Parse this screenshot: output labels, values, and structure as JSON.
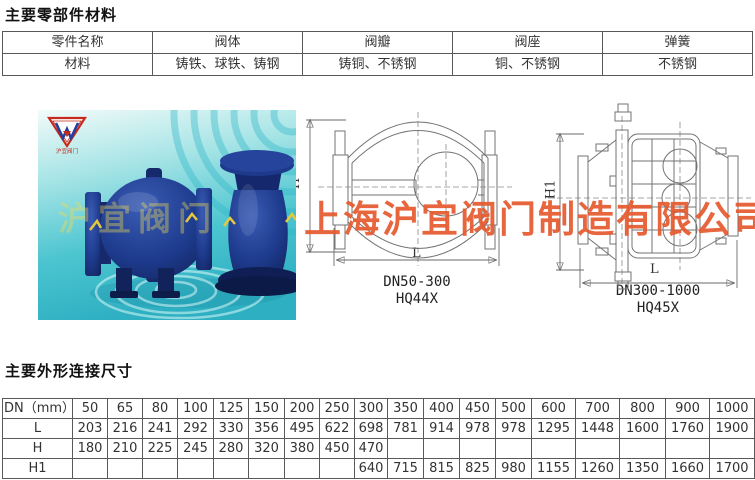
{
  "section1_title": "主要零部件材料",
  "materials_table": {
    "headers": [
      "零件名称",
      "阀体",
      "阀瓣",
      "阀座",
      "弹簧"
    ],
    "rows": [
      [
        "材料",
        "铸铁、球铁、铸钢",
        "铸铜、不锈钢",
        "铜、不锈钢",
        "不锈钢"
      ]
    ]
  },
  "photo": {
    "logo_letter": "W",
    "logo_caption": "沪宜阀门",
    "photo_watermark": "沪宜阀门",
    "logo_red": "#c52a1c",
    "logo_blue": "#23409e",
    "water_color": "#35b9c9",
    "valve_color": "#1d3a8c"
  },
  "drawings": {
    "d1": {
      "caption1": "DN50-300",
      "caption2": "HQ44X",
      "dim_height": "H",
      "dim_length": "L"
    },
    "d2": {
      "caption1": "DN300-1000",
      "caption2": "HQ45X",
      "dim_height": "H1",
      "dim_length": "L"
    }
  },
  "watermark": {
    "text": "上海沪宜阀门制造有限公司",
    "color": "#e65a2e"
  },
  "section2_title": "主要外形连接尺寸",
  "dimensions_table": {
    "row_headers": [
      "DN（mm）",
      "L",
      "H",
      "H1"
    ],
    "dn": [
      "50",
      "65",
      "80",
      "100",
      "125",
      "150",
      "200",
      "250",
      "300",
      "350",
      "400",
      "450",
      "500",
      "600",
      "700",
      "800",
      "900",
      "1000"
    ],
    "L": [
      "203",
      "216",
      "241",
      "292",
      "330",
      "356",
      "495",
      "622",
      "698",
      "781",
      "914",
      "978",
      "978",
      "1295",
      "1448",
      "1600",
      "1760",
      "1900"
    ],
    "H": [
      "180",
      "210",
      "225",
      "245",
      "280",
      "320",
      "380",
      "450",
      "470",
      "",
      "",
      "",
      "",
      "",
      "",
      "",
      "",
      ""
    ],
    "H1": [
      "",
      "",
      "",
      "",
      "",
      "",
      "",
      "",
      "640",
      "715",
      "815",
      "825",
      "980",
      "1155",
      "1260",
      "1350",
      "1660",
      "1700"
    ]
  }
}
